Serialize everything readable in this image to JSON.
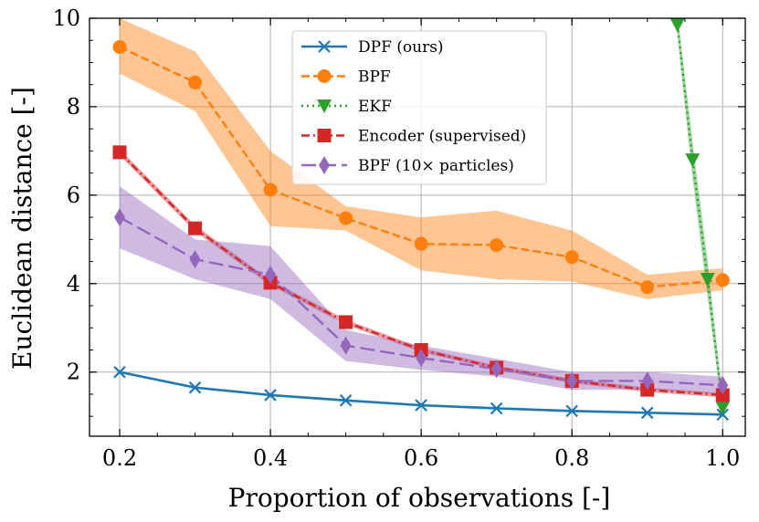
{
  "chart_data": {
    "type": "line",
    "title": "",
    "xlabel": "Proportion of observations [-]",
    "ylabel": "Euclidean distance [-]",
    "xlim": [
      0.16,
      1.03
    ],
    "ylim": [
      0.55,
      10
    ],
    "xticks": [
      0.2,
      0.4,
      0.6,
      0.8,
      1.0
    ],
    "xtick_labels": [
      "0.2",
      "0.4",
      "0.6",
      "0.8",
      "1.0"
    ],
    "yticks": [
      2,
      4,
      6,
      8,
      10
    ],
    "ytick_labels": [
      "2",
      "4",
      "6",
      "8",
      "10"
    ],
    "grid": true,
    "legend_position": "top-center",
    "series": [
      {
        "name": "DPF (ours)",
        "color": "#1f77b4",
        "marker": "x",
        "linestyle": "solid",
        "x": [
          0.2,
          0.3,
          0.4,
          0.5,
          0.6,
          0.7,
          0.8,
          0.9,
          1.0
        ],
        "values": [
          2.0,
          1.65,
          1.48,
          1.36,
          1.25,
          1.18,
          1.12,
          1.08,
          1.04
        ],
        "lower": [
          1.97,
          1.62,
          1.45,
          1.33,
          1.22,
          1.15,
          1.09,
          1.05,
          1.01
        ],
        "upper": [
          2.03,
          1.68,
          1.51,
          1.39,
          1.28,
          1.21,
          1.15,
          1.11,
          1.07
        ]
      },
      {
        "name": "BPF",
        "color": "#ff7f0e",
        "marker": "o",
        "linestyle": "dashed",
        "x": [
          0.2,
          0.3,
          0.4,
          0.5,
          0.6,
          0.7,
          0.8,
          0.9,
          1.0
        ],
        "values": [
          9.35,
          8.55,
          6.12,
          5.48,
          4.9,
          4.87,
          4.6,
          3.92,
          4.08
        ],
        "lower": [
          8.75,
          7.9,
          5.3,
          5.2,
          4.3,
          4.1,
          4.05,
          3.65,
          3.85
        ],
        "upper": [
          10.0,
          9.25,
          7.0,
          5.75,
          5.5,
          5.65,
          5.2,
          4.2,
          4.35
        ]
      },
      {
        "name": "EKF",
        "color": "#2ca02c",
        "marker": "v",
        "linestyle": "dotted",
        "x": [
          0.94,
          0.96,
          0.98,
          1.0
        ],
        "values": [
          9.85,
          6.8,
          4.1,
          1.2
        ],
        "lower": [
          9.6,
          6.4,
          3.7,
          1.05
        ],
        "upper": [
          10.1,
          7.2,
          4.5,
          1.4
        ]
      },
      {
        "name": "Encoder (supervised)",
        "color": "#d62728",
        "marker": "s",
        "linestyle": "dashdot",
        "x": [
          0.2,
          0.3,
          0.4,
          0.5,
          0.6,
          0.7,
          0.8,
          0.9,
          1.0
        ],
        "values": [
          6.97,
          5.25,
          4.02,
          3.13,
          2.5,
          2.1,
          1.8,
          1.6,
          1.48
        ],
        "lower": [
          6.9,
          5.18,
          3.96,
          3.07,
          2.45,
          2.05,
          1.75,
          1.55,
          1.43
        ],
        "upper": [
          7.04,
          5.32,
          4.08,
          3.19,
          2.55,
          2.15,
          1.85,
          1.65,
          1.53
        ]
      },
      {
        "name": "BPF (10× particles)",
        "color": "#9467bd",
        "marker": "d",
        "linestyle": "longdash",
        "x": [
          0.2,
          0.3,
          0.4,
          0.5,
          0.6,
          0.7,
          0.8,
          0.9,
          1.0
        ],
        "values": [
          5.5,
          4.55,
          4.2,
          2.6,
          2.32,
          2.07,
          1.8,
          1.8,
          1.7
        ],
        "lower": [
          4.8,
          4.1,
          3.65,
          2.25,
          2.05,
          1.9,
          1.6,
          1.6,
          1.5
        ],
        "upper": [
          6.2,
          5.0,
          4.85,
          2.95,
          2.6,
          2.3,
          2.0,
          2.0,
          1.9
        ]
      }
    ]
  }
}
